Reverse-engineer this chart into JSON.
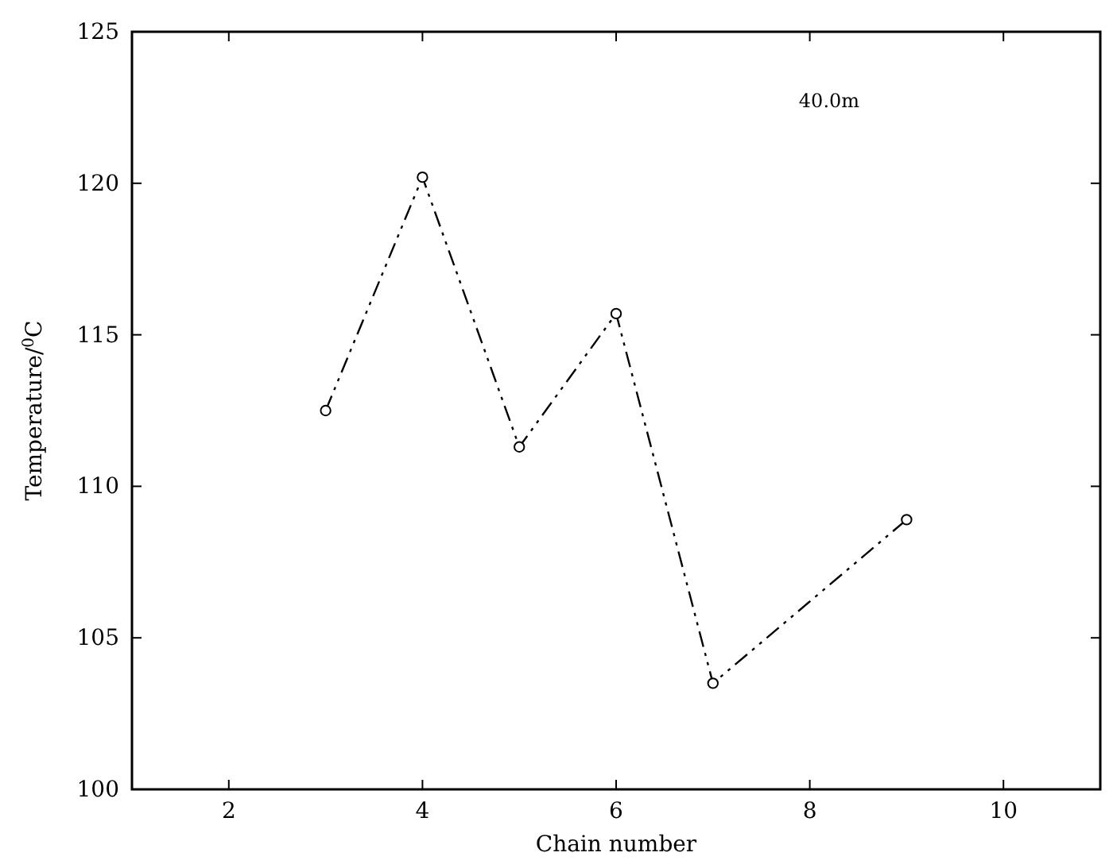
{
  "chart_data": {
    "type": "line",
    "xlabel": "Chain number",
    "ylabel": "Temperature/$^{0}$C",
    "x": [
      3,
      4,
      5,
      6,
      7,
      9
    ],
    "values": [
      112.5,
      120.2,
      111.3,
      115.7,
      103.5,
      108.9
    ],
    "color": "#000000",
    "marker": "circle",
    "line_style": "dashed",
    "xlim": [
      1,
      11
    ],
    "xticks": [
      2,
      4,
      6,
      8,
      10
    ],
    "ylim": [
      100,
      125
    ],
    "yticks": [
      100,
      105,
      110,
      115,
      120,
      125
    ],
    "grid": false,
    "annotations": [
      "40.0m"
    ]
  }
}
